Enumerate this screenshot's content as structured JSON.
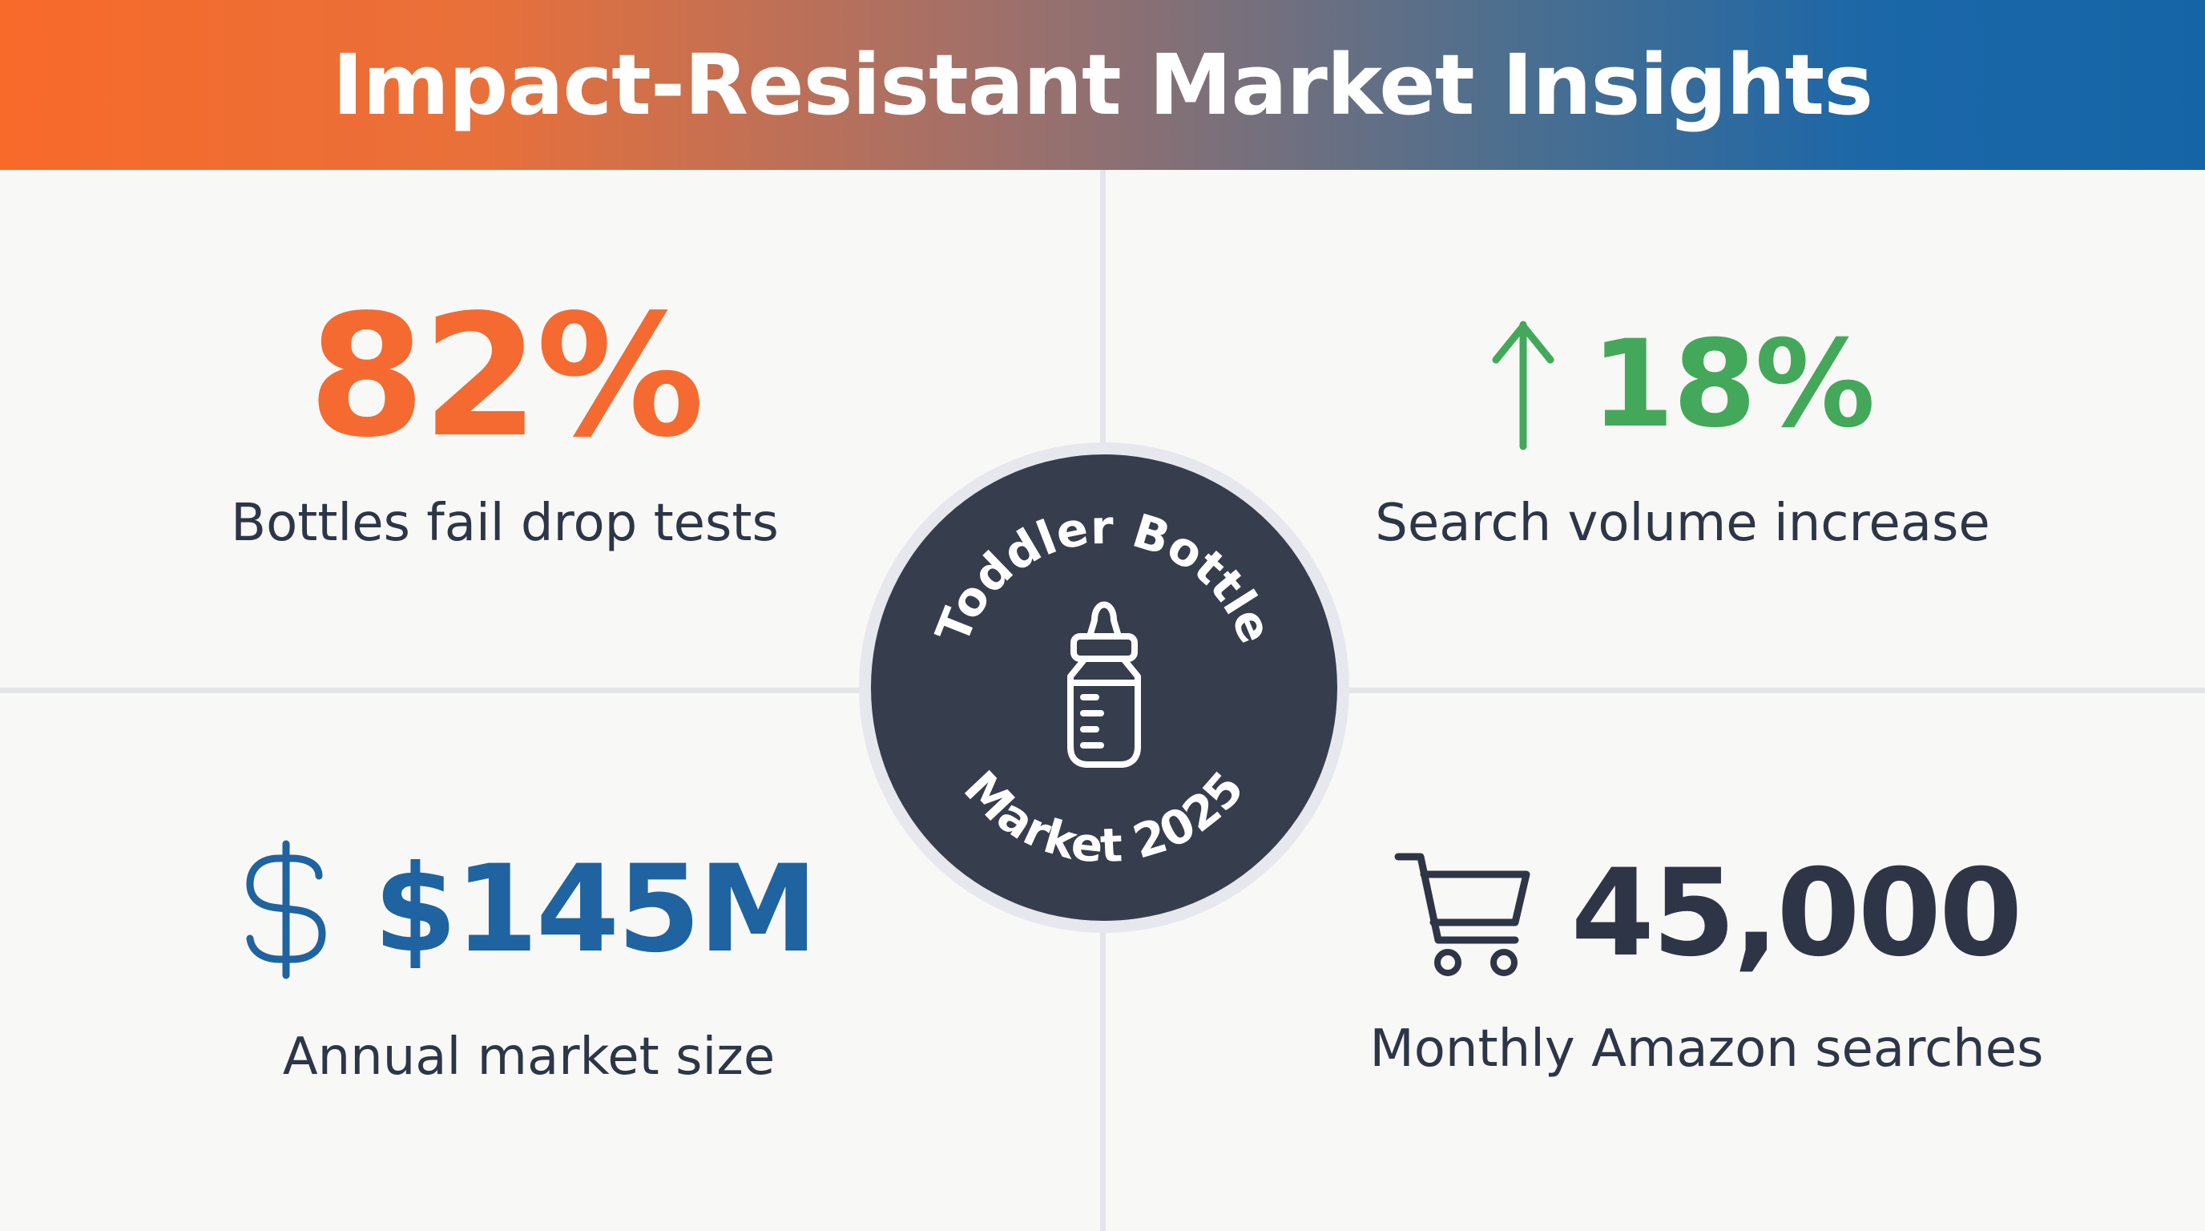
{
  "header": {
    "title": "Impact-Resistant Market Insights"
  },
  "colors": {
    "header_gradient_start": "#f86a2a",
    "header_gradient_end": "#1565a6",
    "orange": "#f46a30",
    "green": "#43a85a",
    "blue": "#1f63a0",
    "navy": "#2e3547",
    "badge_fill": "#363d4d"
  },
  "center_badge": {
    "top_text": "Toddler Bottle",
    "bottom_text": "Market 2025",
    "icon": "baby-bottle-icon"
  },
  "stats": [
    {
      "value": "82%",
      "label": "Bottles fail drop tests",
      "icon": null
    },
    {
      "value": "18%",
      "label": "Search volume increase",
      "icon": "arrow-up-icon"
    },
    {
      "value": "$145M",
      "label": "Annual market size",
      "icon": "dollar-icon"
    },
    {
      "value": "45,000",
      "label": "Monthly Amazon searches",
      "icon": "shopping-cart-icon"
    }
  ]
}
